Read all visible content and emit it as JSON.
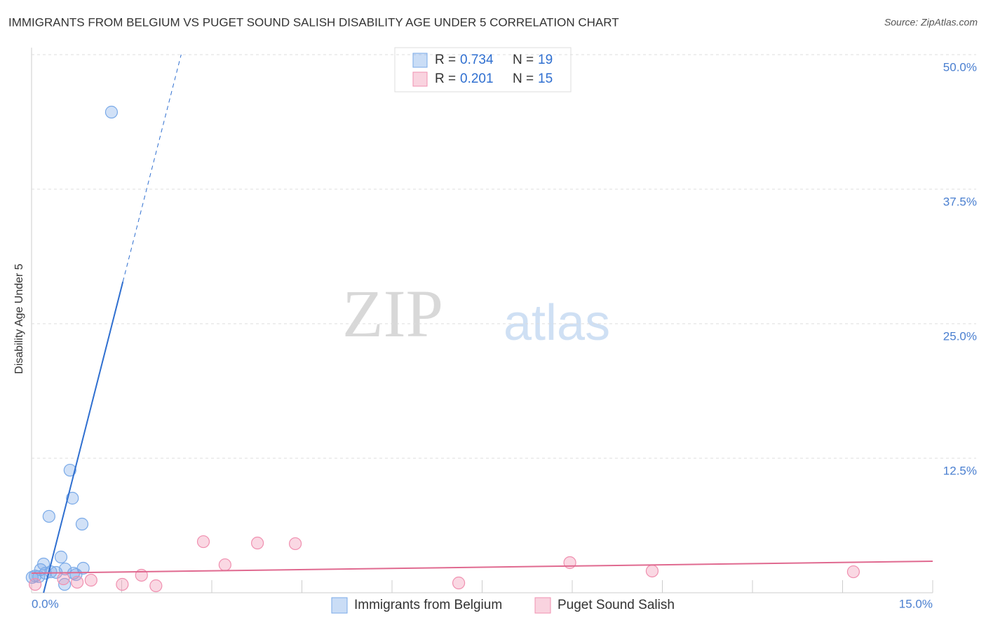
{
  "chart_data": {
    "type": "scatter",
    "title": "IMMIGRANTS FROM BELGIUM VS PUGET SOUND SALISH DISABILITY AGE UNDER 5 CORRELATION CHART",
    "source": "Source: ZipAtlas.com",
    "y_label": "Disability Age Under 5",
    "watermark": [
      "ZIP",
      "atlas"
    ],
    "xlim": [
      0,
      15
    ],
    "ylim": [
      0,
      50
    ],
    "xticks": [
      {
        "value": 0,
        "label": "0.0%"
      },
      {
        "value": 15,
        "label": "15.0%"
      }
    ],
    "minor_xticks": [
      1.5,
      3,
      4.5,
      6,
      7.5,
      9,
      10.5,
      12,
      13.5,
      15
    ],
    "yticks": [
      {
        "value": 12.5,
        "label": "12.5%"
      },
      {
        "value": 25,
        "label": "25.0%"
      },
      {
        "value": 37.5,
        "label": "37.5%"
      },
      {
        "value": 50,
        "label": "50.0%"
      }
    ],
    "grid": true,
    "series": [
      {
        "name": "Immigrants from Belgium",
        "color": "#7aaae8",
        "line_color": "#2f6fd0",
        "r_label": "R =",
        "r": 0.734,
        "n_label": "N =",
        "n": 19,
        "x": [
          1.33,
          0.64,
          0.68,
          0.29,
          0.84,
          0.49,
          0.2,
          0.56,
          0.86,
          0.15,
          0.32,
          0.06,
          0.12,
          0.7,
          0.74,
          0.41,
          0.55,
          0.01,
          0.23
        ],
        "values": [
          44.66,
          11.39,
          8.79,
          7.1,
          6.38,
          3.32,
          2.67,
          2.21,
          2.28,
          2.15,
          1.95,
          1.56,
          1.5,
          1.82,
          1.69,
          1.89,
          0.78,
          1.43,
          1.82
        ],
        "trend_solid": {
          "x": [
            0.2,
            1.52
          ],
          "y": [
            0,
            28.9
          ]
        },
        "trend_dashed": {
          "x": [
            1.52,
            2.49
          ],
          "y": [
            28.9,
            50
          ]
        }
      },
      {
        "name": "Puget Sound Salish",
        "color": "#f090b0",
        "line_color": "#e06a90",
        "r_label": "R =",
        "r": 0.201,
        "n_label": "N =",
        "n": 15,
        "x": [
          2.86,
          3.76,
          4.39,
          3.22,
          8.96,
          10.33,
          13.68,
          1.83,
          1.51,
          2.07,
          0.99,
          0.76,
          7.11,
          0.53,
          0.06
        ],
        "values": [
          4.75,
          4.62,
          4.56,
          2.6,
          2.8,
          2.02,
          1.95,
          1.63,
          0.78,
          0.65,
          1.17,
          0.98,
          0.91,
          1.3,
          0.78
        ],
        "trend_solid": {
          "x": [
            0,
            15
          ],
          "y": [
            1.82,
            2.93
          ]
        }
      }
    ]
  }
}
